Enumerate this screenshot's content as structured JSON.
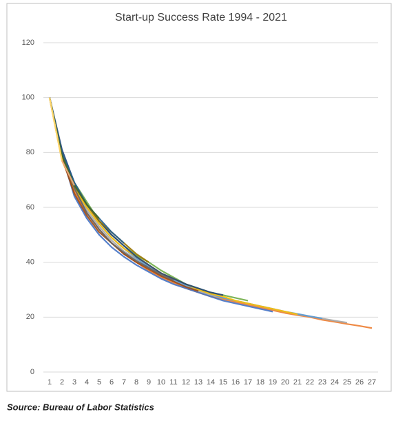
{
  "chart_data": {
    "type": "line",
    "title": "Start-up Success Rate 1994 - 2021",
    "source": "Source: Bureau of Labor Statistics",
    "categories": [
      "1",
      "2",
      "3",
      "4",
      "5",
      "6",
      "7",
      "8",
      "9",
      "10",
      "11",
      "12",
      "13",
      "14",
      "15",
      "16",
      "17",
      "18",
      "19",
      "20",
      "21",
      "22",
      "23",
      "24",
      "25",
      "26",
      "27"
    ],
    "ylim": [
      0,
      120
    ],
    "yticks": [
      0,
      20,
      40,
      60,
      80,
      100,
      120
    ],
    "grid": true,
    "series": [
      {
        "color": "#ed7d31",
        "values": [
          100,
          78,
          66,
          58,
          52,
          47,
          43,
          40,
          37,
          34.5,
          32.5,
          30.5,
          29,
          27.5,
          26.5,
          25.5,
          24.5,
          23.5,
          22.5,
          21.5,
          20.7,
          20,
          19,
          18.3,
          17.5,
          16.8,
          16
        ]
      },
      {
        "color": "#a5a5a5",
        "values": [
          100,
          79,
          67,
          59,
          53,
          48,
          44,
          41,
          38,
          35,
          33,
          31,
          29.5,
          28,
          27,
          26,
          25,
          24,
          23,
          22,
          21,
          20.3,
          19.5,
          18.7,
          18,
          null,
          null
        ]
      },
      {
        "color": "#5b9bd5",
        "values": [
          100,
          80,
          68,
          60,
          54,
          49,
          45,
          41.5,
          38.5,
          36,
          33.5,
          31.5,
          30,
          28.5,
          27,
          26,
          25,
          24,
          23,
          22,
          21.2,
          20.3,
          19.5,
          null,
          null,
          null,
          null
        ]
      },
      {
        "color": "#ffc000",
        "values": [
          100,
          77,
          67,
          60,
          54,
          49,
          45,
          42,
          39,
          36,
          34,
          32,
          30,
          28.5,
          27.5,
          26,
          25,
          24,
          23,
          22,
          21,
          null,
          null,
          null,
          null,
          null,
          null
        ]
      },
      {
        "color": "#4472c4",
        "values": [
          100,
          79,
          64,
          56,
          50,
          45.5,
          42,
          39,
          36.5,
          34,
          32,
          30.5,
          29,
          27.5,
          26,
          25,
          24,
          23,
          22,
          null,
          null,
          null,
          null,
          null,
          null,
          null,
          null
        ]
      },
      {
        "color": "#70ad47",
        "values": [
          100,
          80,
          69,
          62,
          55,
          50,
          46,
          42.5,
          40,
          37,
          34.5,
          32,
          30.5,
          29,
          28,
          27,
          26,
          null,
          null,
          null,
          null,
          null,
          null,
          null,
          null,
          null,
          null
        ]
      },
      {
        "color": "#264478",
        "values": [
          100,
          81,
          69,
          61,
          55,
          50,
          46,
          42,
          39,
          36,
          34,
          32,
          30.5,
          29,
          28,
          null,
          null,
          null,
          null,
          null,
          null,
          null,
          null,
          null,
          null,
          null,
          null
        ]
      },
      {
        "color": "#9e480e",
        "values": [
          100,
          78,
          65,
          57,
          51,
          47,
          43,
          40,
          37.5,
          35,
          33,
          31,
          29.5,
          null,
          null,
          null,
          null,
          null,
          null,
          null,
          null,
          null,
          null,
          null,
          null,
          null,
          null
        ]
      },
      {
        "color": "#636363",
        "values": [
          100,
          79,
          67,
          58,
          52,
          47,
          43.5,
          40.5,
          38,
          35.5,
          33.5,
          null,
          null,
          null,
          null,
          null,
          null,
          null,
          null,
          null,
          null,
          null,
          null,
          null,
          null,
          null,
          null
        ]
      },
      {
        "color": "#997300",
        "values": [
          100,
          79,
          68,
          61,
          55,
          51,
          47,
          43,
          40,
          null,
          null,
          null,
          null,
          null,
          null,
          null,
          null,
          null,
          null,
          null,
          null,
          null,
          null,
          null,
          null,
          null,
          null
        ]
      },
      {
        "color": "#255e91",
        "values": [
          100,
          80,
          69,
          61,
          56,
          51,
          47,
          null,
          null,
          null,
          null,
          null,
          null,
          null,
          null,
          null,
          null,
          null,
          null,
          null,
          null,
          null,
          null,
          null,
          null,
          null,
          null
        ]
      },
      {
        "color": "#43682b",
        "values": [
          100,
          79,
          68,
          61,
          56,
          null,
          null,
          null,
          null,
          null,
          null,
          null,
          null,
          null,
          null,
          null,
          null,
          null,
          null,
          null,
          null,
          null,
          null,
          null,
          null,
          null,
          null
        ]
      },
      {
        "color": "#f4b183",
        "values": [
          100,
          77,
          68,
          null,
          null,
          null,
          null,
          null,
          null,
          null,
          null,
          null,
          null,
          null,
          null,
          null,
          null,
          null,
          null,
          null,
          null,
          null,
          null,
          null,
          null,
          null,
          null
        ]
      },
      {
        "color": "#ffd966",
        "values": [
          100,
          77,
          null,
          null,
          null,
          null,
          null,
          null,
          null,
          null,
          null,
          null,
          null,
          null,
          null,
          null,
          null,
          null,
          null,
          null,
          null,
          null,
          null,
          null,
          null,
          null,
          null
        ]
      }
    ]
  }
}
